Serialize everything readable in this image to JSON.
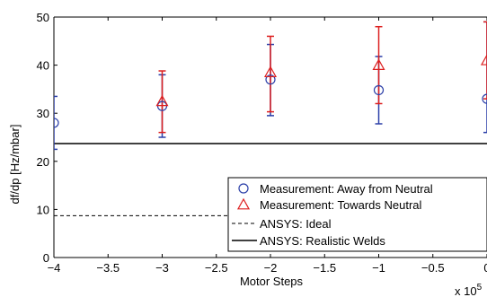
{
  "chart_data": {
    "type": "scatter",
    "xlabel": "Motor Steps",
    "ylabel": "df/dp [Hz/mbar]",
    "x_multiplier_label": "x 10",
    "x_multiplier_exponent": "5",
    "xlim": [
      -4,
      0
    ],
    "ylim": [
      0,
      50
    ],
    "x_ticks": [
      -4,
      -3.5,
      -3,
      -2.5,
      -2,
      -1.5,
      -1,
      -0.5,
      0
    ],
    "x_tick_labels": [
      "−4",
      "−3.5",
      "−3",
      "−2.5",
      "−2",
      "−1.5",
      "−1",
      "−0.5",
      "0"
    ],
    "y_ticks": [
      0,
      10,
      20,
      30,
      40,
      50
    ],
    "y_tick_labels": [
      "0",
      "10",
      "20",
      "30",
      "40",
      "50"
    ],
    "grid": false,
    "legend_position": "bottom-right",
    "series": [
      {
        "name": "Measurement: Away from Neutral",
        "marker": "circle",
        "color": "#2b3fa8",
        "x": [
          -4,
          -3,
          -2,
          -1,
          0
        ],
        "y": [
          28,
          31.5,
          37,
          34.8,
          33
        ],
        "err_low": [
          22.5,
          25,
          29.5,
          27.8,
          26
        ],
        "err_high": [
          33.5,
          38,
          44.3,
          41.8,
          49
        ]
      },
      {
        "name": "Measurement: Towards Neutral",
        "marker": "triangle",
        "color": "#dd1f1f",
        "x": [
          -3,
          -2,
          -1,
          0
        ],
        "y": [
          32.5,
          38.5,
          40,
          41
        ],
        "err_low": [
          26,
          30.3,
          32,
          33
        ],
        "err_high": [
          38.8,
          46,
          48,
          49
        ]
      },
      {
        "name": "ANSYS: Ideal",
        "style": "dashed",
        "color": "#000000",
        "value": 8.7
      },
      {
        "name": "ANSYS: Realistic Welds",
        "style": "solid",
        "color": "#000000",
        "value": 23.7
      }
    ]
  }
}
